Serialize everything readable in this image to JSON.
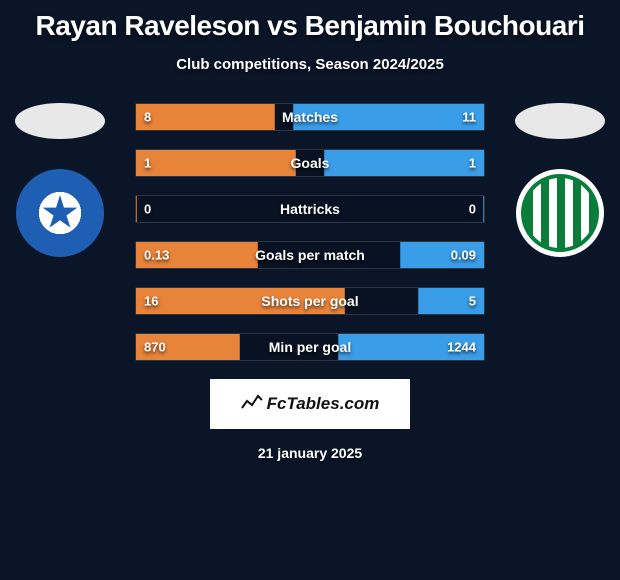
{
  "background_color": "#0a1628",
  "title": "Rayan Raveleson vs Benjamin Bouchouari",
  "title_fontsize": 28,
  "subtitle": "Club competitions, Season 2024/2025",
  "subtitle_fontsize": 15,
  "date": "21 january 2025",
  "watermark": "FcTables.com",
  "players": {
    "left": {
      "crest_name": "A.J. Auxerre",
      "crest_colors": [
        "#1e5fb4",
        "#ffffff"
      ]
    },
    "right": {
      "crest_name": "ASSE Saint-Étienne",
      "crest_colors": [
        "#0a7d3a",
        "#ffffff"
      ]
    }
  },
  "bar_colors": {
    "left": "#e8833a",
    "right": "#3a9de8",
    "track": "rgba(0,0,0,0.15)"
  },
  "stats": [
    {
      "label": "Matches",
      "left_val": "8",
      "right_val": "11",
      "left_pct": 40,
      "right_pct": 55
    },
    {
      "label": "Goals",
      "left_val": "1",
      "right_val": "1",
      "left_pct": 46,
      "right_pct": 46
    },
    {
      "label": "Hattricks",
      "left_val": "0",
      "right_val": "0",
      "left_pct": 0,
      "right_pct": 0
    },
    {
      "label": "Goals per match",
      "left_val": "0.13",
      "right_val": "0.09",
      "left_pct": 35,
      "right_pct": 24
    },
    {
      "label": "Shots per goal",
      "left_val": "16",
      "right_val": "5",
      "left_pct": 60,
      "right_pct": 19
    },
    {
      "label": "Min per goal",
      "left_val": "870",
      "right_val": "1244",
      "left_pct": 30,
      "right_pct": 42
    }
  ]
}
